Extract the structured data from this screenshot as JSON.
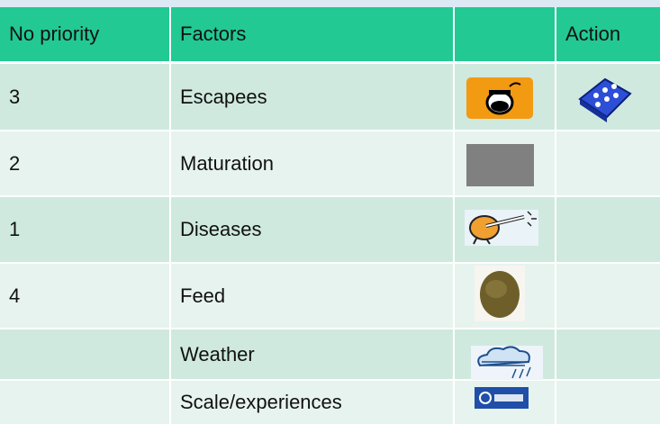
{
  "header": {
    "priority": "No priority",
    "factors": "Factors",
    "action": "Action"
  },
  "rows": [
    {
      "priority": "3",
      "factor": "Escapees"
    },
    {
      "priority": "2",
      "factor": "Maturation"
    },
    {
      "priority": "1",
      "factor": "Diseases"
    },
    {
      "priority": "4",
      "factor": "Feed"
    },
    {
      "factor": "Weather"
    },
    {
      "factor": "Scale/experiences"
    }
  ]
}
